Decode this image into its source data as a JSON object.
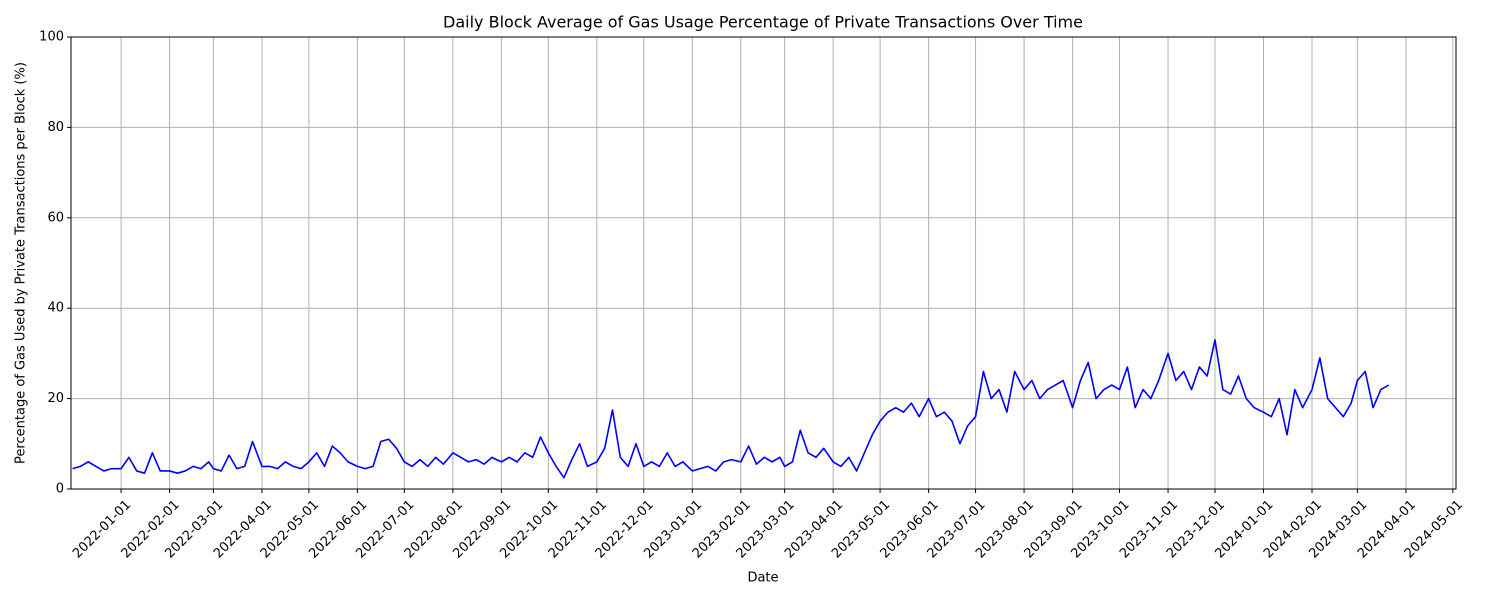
{
  "chart_data": {
    "type": "line",
    "title": "Daily Block Average of Gas Usage Percentage of Private Transactions Over Time",
    "x_label": "Date",
    "y_label": "Percentage of Gas Used by Private Transactions per Block (%)",
    "x": [
      "2021-12-01",
      "2021-12-06",
      "2021-12-11",
      "2021-12-16",
      "2021-12-21",
      "2021-12-26",
      "2022-01-01",
      "2022-01-06",
      "2022-01-11",
      "2022-01-16",
      "2022-01-21",
      "2022-01-26",
      "2022-02-01",
      "2022-02-06",
      "2022-02-11",
      "2022-02-16",
      "2022-02-21",
      "2022-02-26",
      "2022-03-01",
      "2022-03-06",
      "2022-03-11",
      "2022-03-16",
      "2022-03-21",
      "2022-03-26",
      "2022-04-01",
      "2022-04-06",
      "2022-04-11",
      "2022-04-16",
      "2022-04-21",
      "2022-04-26",
      "2022-05-01",
      "2022-05-06",
      "2022-05-11",
      "2022-05-16",
      "2022-05-21",
      "2022-05-26",
      "2022-06-01",
      "2022-06-06",
      "2022-06-11",
      "2022-06-16",
      "2022-06-21",
      "2022-06-26",
      "2022-07-01",
      "2022-07-06",
      "2022-07-11",
      "2022-07-16",
      "2022-07-21",
      "2022-07-26",
      "2022-08-01",
      "2022-08-06",
      "2022-08-11",
      "2022-08-16",
      "2022-08-21",
      "2022-08-26",
      "2022-09-01",
      "2022-09-06",
      "2022-09-11",
      "2022-09-16",
      "2022-09-21",
      "2022-09-26",
      "2022-10-01",
      "2022-10-06",
      "2022-10-11",
      "2022-10-16",
      "2022-10-21",
      "2022-10-26",
      "2022-11-01",
      "2022-11-06",
      "2022-11-11",
      "2022-11-16",
      "2022-11-21",
      "2022-11-26",
      "2022-12-01",
      "2022-12-06",
      "2022-12-11",
      "2022-12-16",
      "2022-12-21",
      "2022-12-26",
      "2023-01-01",
      "2023-01-06",
      "2023-01-11",
      "2023-01-16",
      "2023-01-21",
      "2023-01-26",
      "2023-02-01",
      "2023-02-06",
      "2023-02-11",
      "2023-02-16",
      "2023-02-21",
      "2023-02-26",
      "2023-03-01",
      "2023-03-06",
      "2023-03-11",
      "2023-03-16",
      "2023-03-21",
      "2023-03-26",
      "2023-04-01",
      "2023-04-06",
      "2023-04-11",
      "2023-04-16",
      "2023-04-21",
      "2023-04-26",
      "2023-05-01",
      "2023-05-06",
      "2023-05-11",
      "2023-05-16",
      "2023-05-21",
      "2023-05-26",
      "2023-06-01",
      "2023-06-06",
      "2023-06-11",
      "2023-06-16",
      "2023-06-21",
      "2023-06-26",
      "2023-07-01",
      "2023-07-06",
      "2023-07-11",
      "2023-07-16",
      "2023-07-21",
      "2023-07-26",
      "2023-08-01",
      "2023-08-06",
      "2023-08-11",
      "2023-08-16",
      "2023-08-21",
      "2023-08-26",
      "2023-09-01",
      "2023-09-06",
      "2023-09-11",
      "2023-09-16",
      "2023-09-21",
      "2023-09-26",
      "2023-10-01",
      "2023-10-06",
      "2023-10-11",
      "2023-10-16",
      "2023-10-21",
      "2023-10-26",
      "2023-11-01",
      "2023-11-06",
      "2023-11-11",
      "2023-11-16",
      "2023-11-21",
      "2023-11-26",
      "2023-12-01",
      "2023-12-06",
      "2023-12-11",
      "2023-12-16",
      "2023-12-21",
      "2023-12-26",
      "2024-01-01",
      "2024-01-06",
      "2024-01-11",
      "2024-01-16",
      "2024-01-21",
      "2024-01-26",
      "2024-02-01",
      "2024-02-06",
      "2024-02-11",
      "2024-02-16",
      "2024-02-21",
      "2024-02-26",
      "2024-03-01",
      "2024-03-06",
      "2024-03-11",
      "2024-03-16",
      "2024-03-21"
    ],
    "series": [
      {
        "name": "Gas usage",
        "color": "#0000ff",
        "values": [
          4.5,
          5,
          6,
          5,
          4,
          4.5,
          4.5,
          7,
          4,
          3.5,
          8,
          4,
          4,
          3.5,
          4,
          5,
          4.5,
          6,
          4.5,
          4,
          7.5,
          4.5,
          5,
          10.5,
          5,
          5,
          4.5,
          6,
          5,
          4.5,
          6,
          8,
          5,
          9.5,
          8,
          6,
          5,
          4.5,
          5,
          10.5,
          11,
          9,
          6,
          5,
          6.5,
          5,
          7,
          5.5,
          8,
          7,
          6,
          6.5,
          5.5,
          7,
          6,
          7,
          6,
          8,
          7,
          11.5,
          8,
          5,
          2.5,
          6.5,
          10,
          5,
          6,
          9,
          17.5,
          7,
          5,
          10,
          5,
          6,
          5,
          8,
          5,
          6,
          4,
          4.5,
          5,
          4,
          6,
          6.5,
          6,
          9.5,
          5.5,
          7,
          6,
          7,
          5,
          6,
          13,
          8,
          7,
          9,
          6,
          5,
          7,
          4,
          8,
          12,
          15,
          17,
          18,
          17,
          19,
          16,
          20,
          16,
          17,
          15,
          10,
          14,
          16,
          26,
          20,
          22,
          17,
          26,
          22,
          24,
          20,
          22,
          23,
          24,
          18,
          24,
          28,
          20,
          22,
          23,
          22,
          27,
          18,
          22,
          20,
          24,
          30,
          24,
          26,
          22,
          27,
          25,
          33,
          22,
          21,
          25,
          20,
          18,
          17,
          16,
          20,
          12,
          22,
          18,
          22,
          29,
          20,
          18,
          16,
          19,
          24,
          26,
          18,
          22,
          23
        ]
      }
    ],
    "xlim": [
      "2021-11-30",
      "2024-05-03"
    ],
    "xticks": [
      "2022-01-01",
      "2022-02-01",
      "2022-03-01",
      "2022-04-01",
      "2022-05-01",
      "2022-06-01",
      "2022-07-01",
      "2022-08-01",
      "2022-09-01",
      "2022-10-01",
      "2022-11-01",
      "2022-12-01",
      "2023-01-01",
      "2023-02-01",
      "2023-03-01",
      "2023-04-01",
      "2023-05-01",
      "2023-06-01",
      "2023-07-01",
      "2023-08-01",
      "2023-09-01",
      "2023-10-01",
      "2023-11-01",
      "2023-12-01",
      "2024-01-01",
      "2024-02-01",
      "2024-03-01",
      "2024-04-01",
      "2024-05-01"
    ],
    "ylim": [
      0,
      100
    ],
    "yticks": [
      0,
      20,
      40,
      60,
      80,
      100
    ],
    "grid": true
  }
}
